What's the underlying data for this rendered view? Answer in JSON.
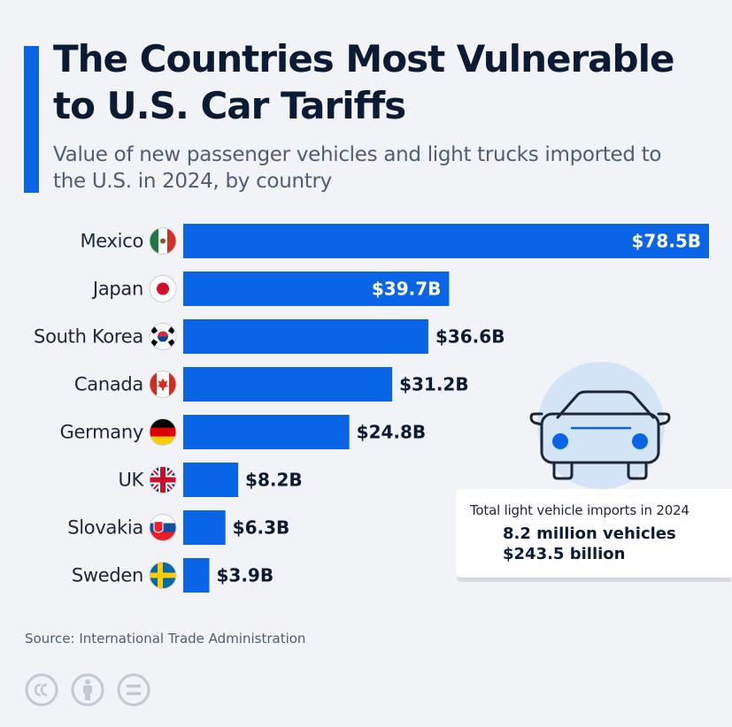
{
  "title": "The Countries Most Vulnerable to U.S. Car Tariffs",
  "subtitle": "Value of new passenger vehicles and light trucks imported to the U.S. in 2024, by country",
  "chart_data": {
    "type": "bar",
    "orientation": "horizontal",
    "categories": [
      "Mexico",
      "Japan",
      "South Korea",
      "Canada",
      "Germany",
      "UK",
      "Slovakia",
      "Sweden"
    ],
    "values": [
      78.5,
      39.7,
      36.6,
      31.2,
      24.8,
      8.2,
      6.3,
      3.9
    ],
    "value_labels": [
      "$78.5B",
      "$39.7B",
      "$36.6B",
      "$31.2B",
      "$24.8B",
      "$8.2B",
      "$6.3B",
      "$3.9B"
    ],
    "flag_icons": [
      "flag-mexico-icon",
      "flag-japan-icon",
      "flag-south-korea-icon",
      "flag-canada-icon",
      "flag-germany-icon",
      "flag-uk-icon",
      "flag-slovakia-icon",
      "flag-sweden-icon"
    ],
    "bar_color": "#0a64e6",
    "xlim": [
      0,
      78.5
    ],
    "grid": false,
    "legend": "none"
  },
  "info_card": {
    "heading": "Total light vehicle imports in 2024",
    "vehicles": "8.2 million vehicles",
    "value": "$243.5 billion",
    "icon": "car-icon"
  },
  "source": "Source: International Trade Administration",
  "license_icons": [
    "cc-icon",
    "attribution-icon",
    "no-derivatives-icon"
  ],
  "colors": {
    "accent": "#0a64e6",
    "title": "#0c1b34",
    "background": "#f1f3f6"
  }
}
